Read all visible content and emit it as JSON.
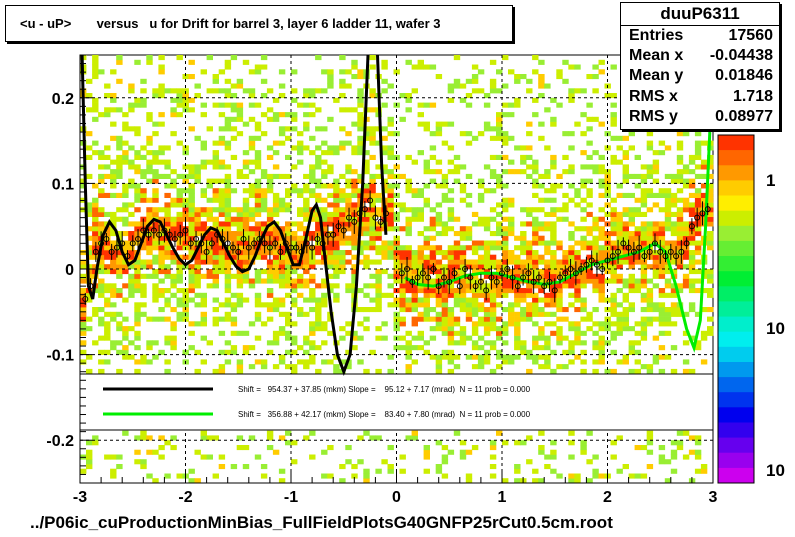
{
  "title": "<u - uP>       versus   u for Drift for barrel 3, layer 6 ladder 11, wafer 3",
  "stats": {
    "name": "duuP6311",
    "rows": [
      {
        "key": "Entries",
        "value": "17560"
      },
      {
        "key": "Mean x",
        "value": "-0.04438"
      },
      {
        "key": "Mean y",
        "value": "0.01846"
      },
      {
        "key": "RMS x",
        "value": "1.718"
      },
      {
        "key": "RMS y",
        "value": "0.08977"
      }
    ]
  },
  "footer": "../P06ic_cuProductionMinBias_FullFieldPlotsG40GNFP25rCut0.5cm.root",
  "legend": {
    "black_text": "Shift =   954.37 + 37.85 (mkm) Slope =    95.12 + 7.17 (mrad)  N = 11 prob = 0.000",
    "green_text": "Shift =   356.88 + 42.17 (mkm) Slope =    83.40 + 7.80 (mrad)  N = 11 prob = 0.000"
  },
  "colors": {
    "fit_left": "#000000",
    "fit_right": "#00ee00",
    "profile_marker": "#000000"
  },
  "palette_labels": [
    "1",
    "10",
    "10"
  ],
  "chart_data": {
    "type": "heatmap",
    "xlim": [
      -3,
      3
    ],
    "ylim": [
      -0.25,
      0.25
    ],
    "x_ticks": [
      -3,
      -2,
      -1,
      0,
      1,
      2,
      3
    ],
    "x_tick_labels": [
      "-3",
      "-2",
      "-1",
      "0",
      "1",
      "2",
      "3"
    ],
    "y_ticks": [
      -0.2,
      -0.1,
      0,
      0.1,
      0.2
    ],
    "y_tick_labels": [
      "-0.2",
      "-0.1",
      "0",
      "0.1",
      "0.2"
    ],
    "grid": true,
    "profile_points": [
      {
        "x": -2.95,
        "y": -0.035
      },
      {
        "x": -2.9,
        "y": -0.02
      },
      {
        "x": -2.85,
        "y": 0.02
      },
      {
        "x": -2.8,
        "y": 0.03
      },
      {
        "x": -2.75,
        "y": 0.035
      },
      {
        "x": -2.7,
        "y": 0.02
      },
      {
        "x": -2.65,
        "y": 0.025
      },
      {
        "x": -2.6,
        "y": 0.03
      },
      {
        "x": -2.55,
        "y": 0.015
      },
      {
        "x": -2.5,
        "y": 0.03
      },
      {
        "x": -2.45,
        "y": 0.035
      },
      {
        "x": -2.4,
        "y": 0.045
      },
      {
        "x": -2.35,
        "y": 0.04
      },
      {
        "x": -2.3,
        "y": 0.045
      },
      {
        "x": -2.25,
        "y": 0.04
      },
      {
        "x": -2.2,
        "y": 0.045
      },
      {
        "x": -2.15,
        "y": 0.04
      },
      {
        "x": -2.1,
        "y": 0.035
      },
      {
        "x": -2.05,
        "y": 0.04
      },
      {
        "x": -2.0,
        "y": 0.045
      },
      {
        "x": -1.95,
        "y": 0.03
      },
      {
        "x": -1.9,
        "y": 0.035
      },
      {
        "x": -1.85,
        "y": 0.03
      },
      {
        "x": -1.8,
        "y": 0.02
      },
      {
        "x": -1.75,
        "y": 0.03
      },
      {
        "x": -1.7,
        "y": 0.04
      },
      {
        "x": -1.65,
        "y": 0.035
      },
      {
        "x": -1.6,
        "y": 0.03
      },
      {
        "x": -1.55,
        "y": 0.025
      },
      {
        "x": -1.5,
        "y": 0.02
      },
      {
        "x": -1.45,
        "y": 0.035
      },
      {
        "x": -1.4,
        "y": 0.025
      },
      {
        "x": -1.35,
        "y": 0.03
      },
      {
        "x": -1.3,
        "y": 0.035
      },
      {
        "x": -1.25,
        "y": 0.03
      },
      {
        "x": -1.2,
        "y": 0.025
      },
      {
        "x": -1.15,
        "y": 0.03
      },
      {
        "x": -1.1,
        "y": 0.02
      },
      {
        "x": -1.05,
        "y": 0.03
      },
      {
        "x": -1.0,
        "y": 0.025
      },
      {
        "x": -0.95,
        "y": 0.025
      },
      {
        "x": -0.9,
        "y": 0.02
      },
      {
        "x": -0.85,
        "y": 0.03
      },
      {
        "x": -0.8,
        "y": 0.025
      },
      {
        "x": -0.75,
        "y": 0.035
      },
      {
        "x": -0.7,
        "y": 0.03
      },
      {
        "x": -0.65,
        "y": 0.04
      },
      {
        "x": -0.6,
        "y": 0.04
      },
      {
        "x": -0.55,
        "y": 0.05
      },
      {
        "x": -0.5,
        "y": 0.045
      },
      {
        "x": -0.45,
        "y": 0.06
      },
      {
        "x": -0.4,
        "y": 0.055
      },
      {
        "x": -0.35,
        "y": 0.065
      },
      {
        "x": -0.3,
        "y": 0.07
      },
      {
        "x": -0.25,
        "y": 0.08
      },
      {
        "x": -0.2,
        "y": 0.06
      },
      {
        "x": -0.15,
        "y": 0.055
      },
      {
        "x": -0.1,
        "y": 0.065
      },
      {
        "x": 0.05,
        "y": -0.005
      },
      {
        "x": 0.1,
        "y": 0.0
      },
      {
        "x": 0.15,
        "y": -0.015
      },
      {
        "x": 0.2,
        "y": -0.01
      },
      {
        "x": 0.25,
        "y": -0.005
      },
      {
        "x": 0.3,
        "y": -0.01
      },
      {
        "x": 0.35,
        "y": 0.0
      },
      {
        "x": 0.4,
        "y": -0.02
      },
      {
        "x": 0.45,
        "y": -0.01
      },
      {
        "x": 0.5,
        "y": -0.015
      },
      {
        "x": 0.55,
        "y": -0.005
      },
      {
        "x": 0.6,
        "y": -0.02
      },
      {
        "x": 0.65,
        "y": 0.0
      },
      {
        "x": 0.7,
        "y": -0.01
      },
      {
        "x": 0.75,
        "y": -0.02
      },
      {
        "x": 0.8,
        "y": -0.015
      },
      {
        "x": 0.85,
        "y": -0.025
      },
      {
        "x": 0.9,
        "y": -0.01
      },
      {
        "x": 0.95,
        "y": -0.015
      },
      {
        "x": 1.0,
        "y": -0.005
      },
      {
        "x": 1.05,
        "y": 0.0
      },
      {
        "x": 1.1,
        "y": -0.01
      },
      {
        "x": 1.15,
        "y": -0.02
      },
      {
        "x": 1.2,
        "y": -0.01
      },
      {
        "x": 1.25,
        "y": -0.005
      },
      {
        "x": 1.3,
        "y": -0.015
      },
      {
        "x": 1.35,
        "y": -0.01
      },
      {
        "x": 1.4,
        "y": -0.02
      },
      {
        "x": 1.45,
        "y": -0.015
      },
      {
        "x": 1.5,
        "y": -0.025
      },
      {
        "x": 1.55,
        "y": -0.01
      },
      {
        "x": 1.6,
        "y": -0.005
      },
      {
        "x": 1.65,
        "y": 0.0
      },
      {
        "x": 1.7,
        "y": -0.005
      },
      {
        "x": 1.75,
        "y": 0.0
      },
      {
        "x": 1.8,
        "y": 0.005
      },
      {
        "x": 1.85,
        "y": 0.01
      },
      {
        "x": 1.9,
        "y": 0.005
      },
      {
        "x": 1.95,
        "y": 0.0
      },
      {
        "x": 2.0,
        "y": 0.01
      },
      {
        "x": 2.05,
        "y": 0.015
      },
      {
        "x": 2.1,
        "y": 0.02
      },
      {
        "x": 2.15,
        "y": 0.03
      },
      {
        "x": 2.2,
        "y": 0.025
      },
      {
        "x": 2.25,
        "y": 0.02
      },
      {
        "x": 2.3,
        "y": 0.025
      },
      {
        "x": 2.35,
        "y": 0.015
      },
      {
        "x": 2.4,
        "y": 0.02
      },
      {
        "x": 2.45,
        "y": 0.03
      },
      {
        "x": 2.5,
        "y": 0.02
      },
      {
        "x": 2.55,
        "y": 0.015
      },
      {
        "x": 2.6,
        "y": 0.02
      },
      {
        "x": 2.65,
        "y": 0.015
      },
      {
        "x": 2.7,
        "y": 0.02
      },
      {
        "x": 2.75,
        "y": 0.03
      },
      {
        "x": 2.8,
        "y": 0.05
      },
      {
        "x": 2.85,
        "y": 0.06
      },
      {
        "x": 2.9,
        "y": 0.065
      },
      {
        "x": 2.95,
        "y": 0.07
      }
    ],
    "fit_black": [
      {
        "x": -2.98,
        "y": 0.25
      },
      {
        "x": -2.95,
        "y": 0.1
      },
      {
        "x": -2.92,
        "y": -0.02
      },
      {
        "x": -2.88,
        "y": -0.035
      },
      {
        "x": -2.84,
        "y": 0.0
      },
      {
        "x": -2.78,
        "y": 0.04
      },
      {
        "x": -2.72,
        "y": 0.055
      },
      {
        "x": -2.66,
        "y": 0.045
      },
      {
        "x": -2.6,
        "y": 0.02
      },
      {
        "x": -2.54,
        "y": 0.005
      },
      {
        "x": -2.48,
        "y": 0.01
      },
      {
        "x": -2.42,
        "y": 0.03
      },
      {
        "x": -2.36,
        "y": 0.05
      },
      {
        "x": -2.3,
        "y": 0.058
      },
      {
        "x": -2.24,
        "y": 0.055
      },
      {
        "x": -2.18,
        "y": 0.04
      },
      {
        "x": -2.12,
        "y": 0.025
      },
      {
        "x": -2.06,
        "y": 0.012
      },
      {
        "x": -2.0,
        "y": 0.005
      },
      {
        "x": -1.94,
        "y": 0.01
      },
      {
        "x": -1.88,
        "y": 0.025
      },
      {
        "x": -1.82,
        "y": 0.04
      },
      {
        "x": -1.76,
        "y": 0.048
      },
      {
        "x": -1.7,
        "y": 0.045
      },
      {
        "x": -1.64,
        "y": 0.03
      },
      {
        "x": -1.58,
        "y": 0.015
      },
      {
        "x": -1.52,
        "y": 0.003
      },
      {
        "x": -1.46,
        "y": -0.003
      },
      {
        "x": -1.4,
        "y": 0.0
      },
      {
        "x": -1.34,
        "y": 0.015
      },
      {
        "x": -1.28,
        "y": 0.035
      },
      {
        "x": -1.22,
        "y": 0.05
      },
      {
        "x": -1.16,
        "y": 0.055
      },
      {
        "x": -1.1,
        "y": 0.045
      },
      {
        "x": -1.04,
        "y": 0.025
      },
      {
        "x": -0.98,
        "y": 0.005
      },
      {
        "x": -0.92,
        "y": 0.005
      },
      {
        "x": -0.86,
        "y": 0.035
      },
      {
        "x": -0.8,
        "y": 0.068
      },
      {
        "x": -0.76,
        "y": 0.075
      },
      {
        "x": -0.72,
        "y": 0.06
      },
      {
        "x": -0.68,
        "y": 0.015
      },
      {
        "x": -0.62,
        "y": -0.05
      },
      {
        "x": -0.56,
        "y": -0.1
      },
      {
        "x": -0.5,
        "y": -0.12
      },
      {
        "x": -0.44,
        "y": -0.1
      },
      {
        "x": -0.38,
        "y": -0.02
      },
      {
        "x": -0.32,
        "y": 0.1
      },
      {
        "x": -0.27,
        "y": 0.25
      }
    ],
    "fit_black_right": [
      {
        "x": -0.18,
        "y": 0.25
      },
      {
        "x": -0.14,
        "y": 0.12
      },
      {
        "x": -0.1,
        "y": 0.04
      }
    ],
    "fit_green": [
      {
        "x": 0.08,
        "y": -0.01
      },
      {
        "x": 0.2,
        "y": -0.018
      },
      {
        "x": 0.35,
        "y": -0.02
      },
      {
        "x": 0.5,
        "y": -0.015
      },
      {
        "x": 0.65,
        "y": -0.008
      },
      {
        "x": 0.8,
        "y": -0.005
      },
      {
        "x": 0.95,
        "y": -0.005
      },
      {
        "x": 1.1,
        "y": -0.01
      },
      {
        "x": 1.25,
        "y": -0.015
      },
      {
        "x": 1.4,
        "y": -0.018
      },
      {
        "x": 1.55,
        "y": -0.015
      },
      {
        "x": 1.7,
        "y": -0.005
      },
      {
        "x": 1.85,
        "y": 0.005
      },
      {
        "x": 2.0,
        "y": 0.01
      },
      {
        "x": 2.15,
        "y": 0.015
      },
      {
        "x": 2.3,
        "y": 0.02
      },
      {
        "x": 2.45,
        "y": 0.03
      },
      {
        "x": 2.55,
        "y": 0.02
      },
      {
        "x": 2.65,
        "y": -0.02
      },
      {
        "x": 2.75,
        "y": -0.07
      },
      {
        "x": 2.82,
        "y": -0.092
      },
      {
        "x": 2.88,
        "y": -0.06
      },
      {
        "x": 2.93,
        "y": 0.05
      },
      {
        "x": 2.97,
        "y": 0.16
      }
    ]
  }
}
